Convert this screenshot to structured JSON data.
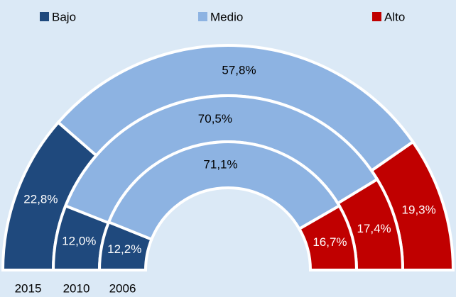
{
  "chart_data": {
    "type": "semi-donut",
    "categories": [
      "2015",
      "2010",
      "2006"
    ],
    "series": [
      {
        "name": "Bajo",
        "color": "#1f497d",
        "values": [
          22.8,
          12.0,
          12.2
        ],
        "value_labels": [
          "22,8%",
          "12,0%",
          "12,2%"
        ]
      },
      {
        "name": "Medio",
        "color": "#8db3e2",
        "values": [
          57.8,
          70.5,
          71.1
        ],
        "value_labels": [
          "57,8%",
          "70,5%",
          "71,1%"
        ]
      },
      {
        "name": "Alto",
        "color": "#c00000",
        "values": [
          19.3,
          17.4,
          16.7
        ],
        "value_labels": [
          "19,3%",
          "17,4%",
          "16,7%"
        ]
      }
    ],
    "legend": "top"
  }
}
